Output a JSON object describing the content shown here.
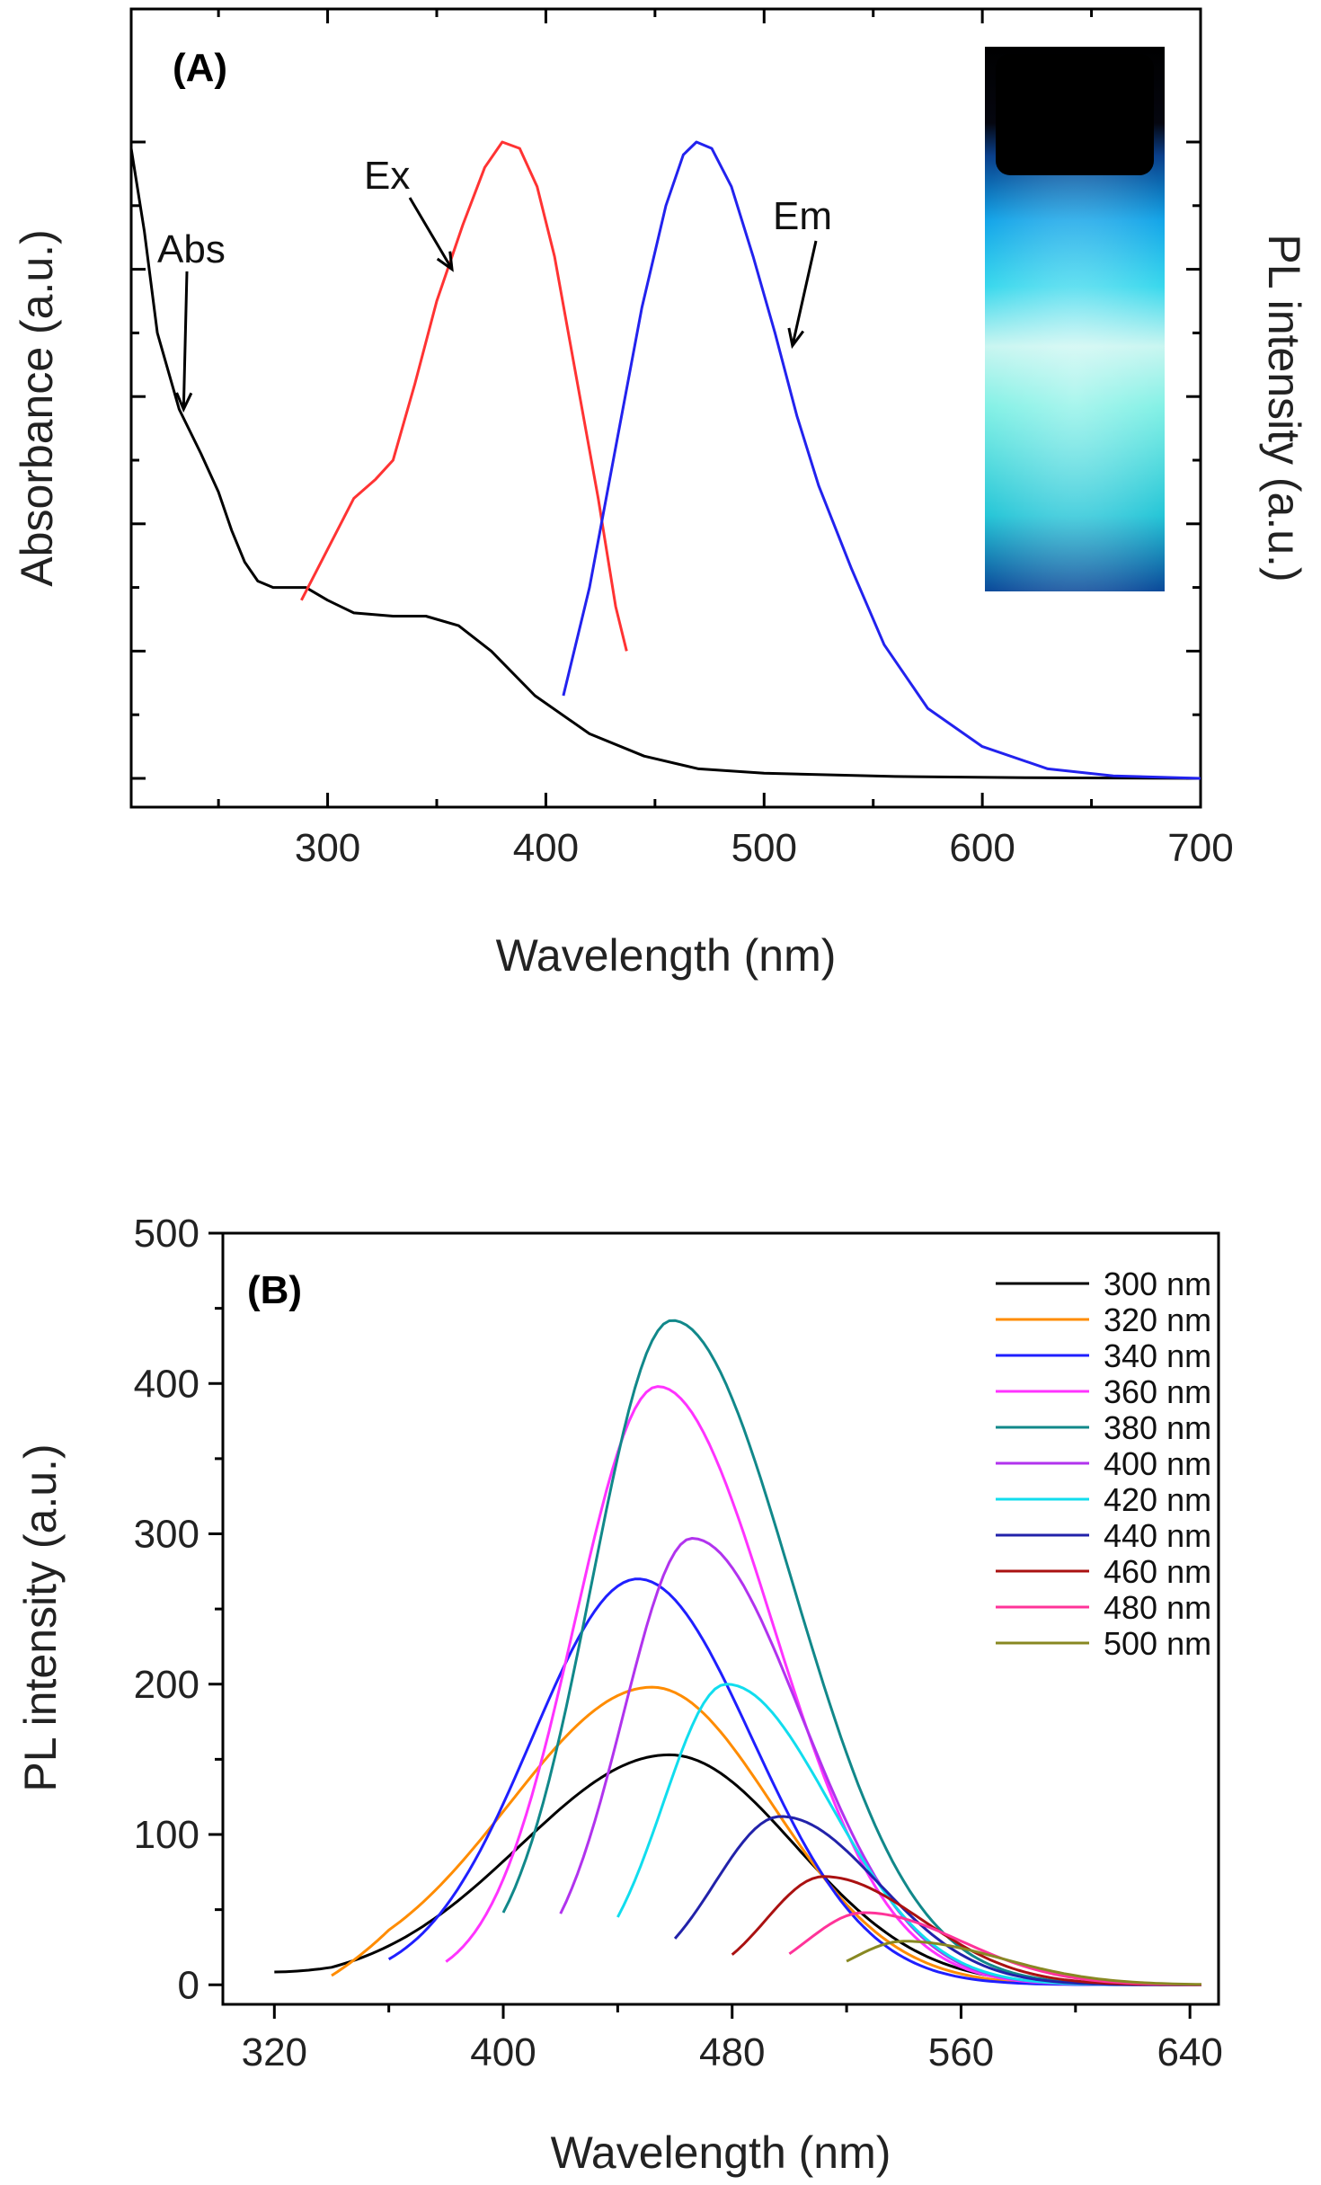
{
  "chart_data": [
    {
      "id": "A",
      "type": "line",
      "panel_label": "(A)",
      "title": "",
      "xlabel": "Wavelength (nm)",
      "ylabel_left": "Absorbance (a.u.)",
      "ylabel_right": "PL intensity (a.u.)",
      "xlim": [
        210,
        700
      ],
      "ylim": [
        0,
        1.0
      ],
      "x_ticks": [
        300,
        400,
        500,
        600,
        700
      ],
      "y_ticks_labeled": false,
      "series": [
        {
          "name": "Abs",
          "color": "#000000",
          "points": [
            [
              210,
              0.99
            ],
            [
              216,
              0.86
            ],
            [
              222,
              0.7
            ],
            [
              232,
              0.58
            ],
            [
              242,
              0.51
            ],
            [
              250,
              0.45
            ],
            [
              256,
              0.39
            ],
            [
              262,
              0.34
            ],
            [
              268,
              0.31
            ],
            [
              275,
              0.3
            ],
            [
              290,
              0.3
            ],
            [
              300,
              0.28
            ],
            [
              312,
              0.26
            ],
            [
              330,
              0.255
            ],
            [
              345,
              0.255
            ],
            [
              360,
              0.24
            ],
            [
              375,
              0.2
            ],
            [
              395,
              0.13
            ],
            [
              420,
              0.07
            ],
            [
              445,
              0.035
            ],
            [
              470,
              0.015
            ],
            [
              500,
              0.008
            ],
            [
              560,
              0.003
            ],
            [
              620,
              0.001
            ],
            [
              700,
              0.0
            ]
          ]
        },
        {
          "name": "Ex",
          "color": "#ff3333",
          "points": [
            [
              288,
              0.28
            ],
            [
              300,
              0.36
            ],
            [
              312,
              0.44
            ],
            [
              322,
              0.47
            ],
            [
              330,
              0.5
            ],
            [
              340,
              0.62
            ],
            [
              350,
              0.75
            ],
            [
              362,
              0.87
            ],
            [
              372,
              0.96
            ],
            [
              380,
              1.0
            ],
            [
              388,
              0.99
            ],
            [
              396,
              0.93
            ],
            [
              404,
              0.82
            ],
            [
              414,
              0.63
            ],
            [
              424,
              0.44
            ],
            [
              432,
              0.27
            ],
            [
              437,
              0.2
            ]
          ]
        },
        {
          "name": "Em",
          "color": "#2222ee",
          "points": [
            [
              408,
              0.13
            ],
            [
              420,
              0.3
            ],
            [
              432,
              0.52
            ],
            [
              444,
              0.74
            ],
            [
              455,
              0.9
            ],
            [
              463,
              0.98
            ],
            [
              469,
              1.0
            ],
            [
              476,
              0.99
            ],
            [
              485,
              0.93
            ],
            [
              495,
              0.82
            ],
            [
              505,
              0.7
            ],
            [
              515,
              0.57
            ],
            [
              525,
              0.46
            ],
            [
              540,
              0.33
            ],
            [
              555,
              0.21
            ],
            [
              575,
              0.11
            ],
            [
              600,
              0.05
            ],
            [
              630,
              0.015
            ],
            [
              660,
              0.004
            ],
            [
              700,
              0.0
            ]
          ]
        }
      ],
      "annotations": [
        {
          "text": "Abs",
          "target_x": 234,
          "target_y": 0.58
        },
        {
          "text": "Ex",
          "target_x": 357,
          "target_y": 0.8
        },
        {
          "text": "Em",
          "target_x": 513,
          "target_y": 0.68
        }
      ]
    },
    {
      "id": "B",
      "type": "line",
      "panel_label": "(B)",
      "title": "",
      "xlabel": "Wavelength (nm)",
      "ylabel": "PL intensity (a.u.)",
      "xlim": [
        302,
        650
      ],
      "ylim": [
        -13,
        500
      ],
      "x_ticks": [
        320,
        400,
        480,
        560,
        640
      ],
      "y_ticks": [
        0,
        100,
        200,
        300,
        400,
        500
      ],
      "legend_position": "top-right",
      "series": [
        {
          "name": "300 nm",
          "color": "#000000",
          "start": 320,
          "peak_x": 458,
          "peak_y": 153,
          "sigma_left": 52,
          "sigma_right": 44
        },
        {
          "name": "320 nm",
          "color": "#ff8c00",
          "start": 340,
          "peak_x": 452,
          "peak_y": 198,
          "sigma_left": 50,
          "sigma_right": 42
        },
        {
          "name": "340 nm",
          "color": "#1f1fff",
          "start": 360,
          "peak_x": 447,
          "peak_y": 270,
          "sigma_left": 37,
          "sigma_right": 40
        },
        {
          "name": "360 nm",
          "color": "#ff33ff",
          "start": 380,
          "peak_x": 454,
          "peak_y": 398,
          "sigma_left": 29,
          "sigma_right": 40
        },
        {
          "name": "380 nm",
          "color": "#11888a",
          "start": 400,
          "peak_x": 459,
          "peak_y": 442,
          "sigma_left": 28,
          "sigma_right": 42
        },
        {
          "name": "400 nm",
          "color": "#b133ee",
          "start": 420,
          "peak_x": 466,
          "peak_y": 297,
          "sigma_left": 24,
          "sigma_right": 38
        },
        {
          "name": "420 nm",
          "color": "#11ddee",
          "start": 440,
          "peak_x": 478,
          "peak_y": 200,
          "sigma_left": 22,
          "sigma_right": 36
        },
        {
          "name": "440 nm",
          "color": "#2222aa",
          "start": 460,
          "peak_x": 497,
          "peak_y": 112,
          "sigma_left": 23,
          "sigma_right": 34
        },
        {
          "name": "460 nm",
          "color": "#aa1111",
          "start": 480,
          "peak_x": 512,
          "peak_y": 72,
          "sigma_left": 20,
          "sigma_right": 34
        },
        {
          "name": "480 nm",
          "color": "#ff3399",
          "start": 500,
          "peak_x": 526,
          "peak_y": 48,
          "sigma_left": 20,
          "sigma_right": 34
        },
        {
          "name": "500 nm",
          "color": "#888822",
          "start": 520,
          "peak_x": 540,
          "peak_y": 29,
          "sigma_left": 18,
          "sigma_right": 34
        }
      ]
    }
  ]
}
